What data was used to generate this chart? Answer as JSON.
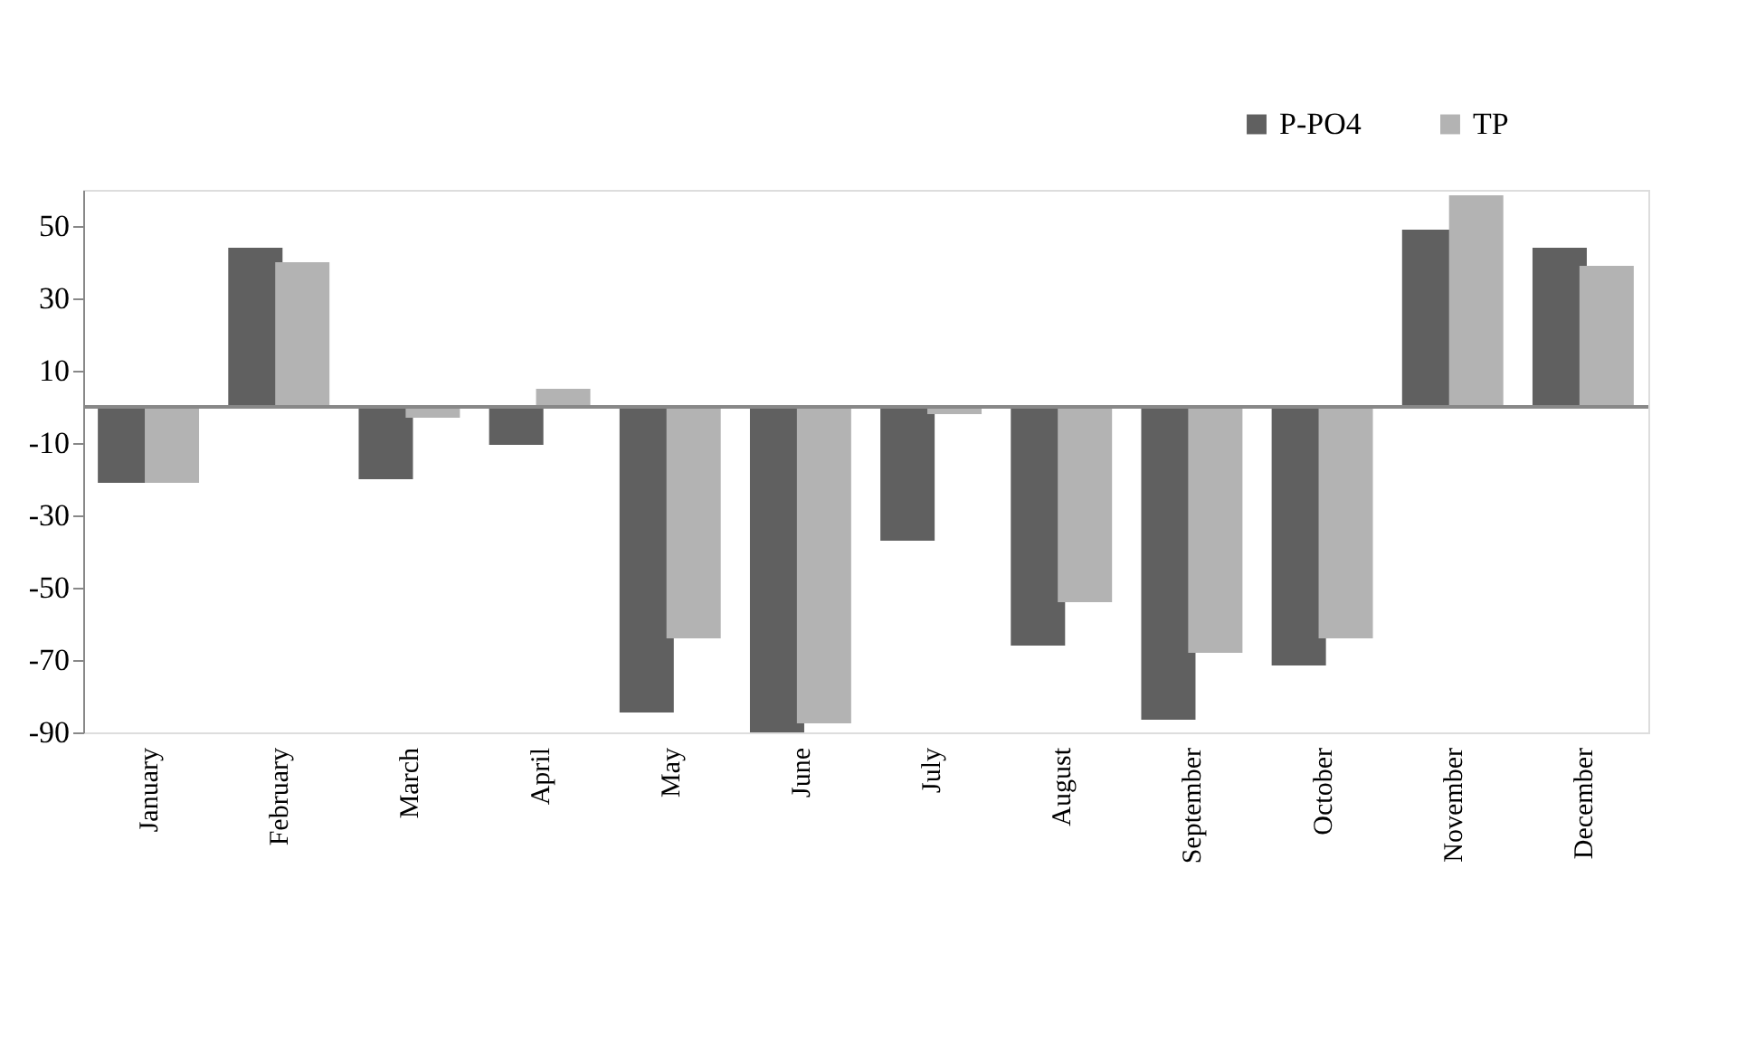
{
  "chart_data": {
    "type": "bar",
    "categories": [
      "January",
      "February",
      "March",
      "April",
      "May",
      "June",
      "July",
      "August",
      "September",
      "October",
      "November",
      "December"
    ],
    "series": [
      {
        "name": "P-PO4",
        "color": "#606060",
        "values": [
          -21,
          44,
          -20,
          -10.5,
          -84.5,
          -90,
          -37,
          -66,
          -86.5,
          -71.5,
          49,
          44
        ]
      },
      {
        "name": "TP",
        "color": "#b3b3b3",
        "values": [
          -21,
          40,
          -3,
          5,
          -64,
          -87.5,
          -2,
          -54,
          -68,
          -64,
          58.5,
          39
        ]
      }
    ],
    "ylim": [
      -90,
      60
    ],
    "yticks": [
      -90,
      -70,
      -50,
      -30,
      -10,
      10,
      30,
      50
    ],
    "grid": false,
    "legend": "top right"
  }
}
